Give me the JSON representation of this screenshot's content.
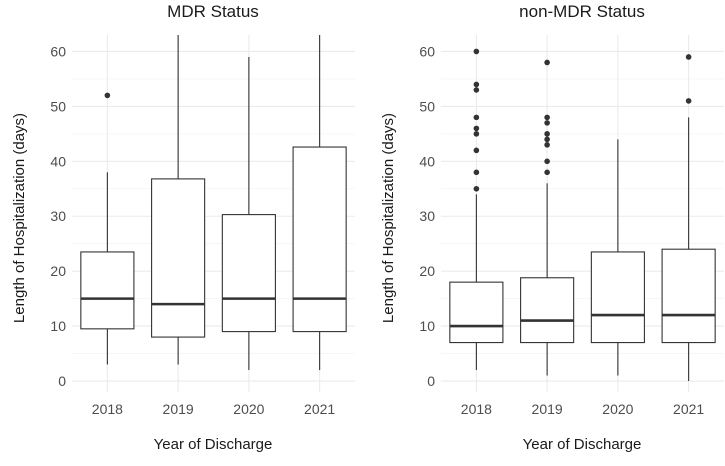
{
  "chart_data": [
    {
      "type": "box",
      "title": "MDR Status",
      "xlabel": "Year of Discharge",
      "ylabel": "Length of Hospitalization (days)",
      "ylim": [
        -2,
        63
      ],
      "yticks": [
        0,
        10,
        20,
        30,
        40,
        50,
        60
      ],
      "grid": true,
      "categories": [
        "2018",
        "2019",
        "2020",
        "2021"
      ],
      "boxes": [
        {
          "category": "2018",
          "whisker_low": 3,
          "q1": 9.5,
          "median": 15,
          "q3": 23.5,
          "whisker_high": 38,
          "outliers": [
            52
          ]
        },
        {
          "category": "2019",
          "whisker_low": 3,
          "q1": 8,
          "median": 14,
          "q3": 36.8,
          "whisker_high": 63,
          "outliers": []
        },
        {
          "category": "2020",
          "whisker_low": 2,
          "q1": 9,
          "median": 15,
          "q3": 30.3,
          "whisker_high": 59,
          "outliers": []
        },
        {
          "category": "2021",
          "whisker_low": 2,
          "q1": 9,
          "median": 15,
          "q3": 42.6,
          "whisker_high": 63,
          "outliers": []
        }
      ]
    },
    {
      "type": "box",
      "title": "non-MDR Status",
      "xlabel": "Year of Discharge",
      "ylabel": "Length of Hospitalization (days)",
      "ylim": [
        -2,
        63
      ],
      "yticks": [
        0,
        10,
        20,
        30,
        40,
        50,
        60
      ],
      "grid": true,
      "categories": [
        "2018",
        "2019",
        "2020",
        "2021"
      ],
      "boxes": [
        {
          "category": "2018",
          "whisker_low": 2,
          "q1": 7,
          "median": 10,
          "q3": 18,
          "whisker_high": 34,
          "outliers": [
            35,
            38,
            42,
            45,
            46,
            48,
            53,
            54,
            60
          ]
        },
        {
          "category": "2019",
          "whisker_low": 1,
          "q1": 7,
          "median": 11,
          "q3": 18.8,
          "whisker_high": 36,
          "outliers": [
            38,
            40,
            43,
            44,
            45,
            47,
            48,
            58
          ]
        },
        {
          "category": "2020",
          "whisker_low": 1,
          "q1": 7,
          "median": 12,
          "q3": 23.5,
          "whisker_high": 44,
          "outliers": []
        },
        {
          "category": "2021",
          "whisker_low": 0,
          "q1": 7,
          "median": 12,
          "q3": 24,
          "whisker_high": 48,
          "outliers": [
            51,
            59
          ]
        }
      ]
    }
  ]
}
